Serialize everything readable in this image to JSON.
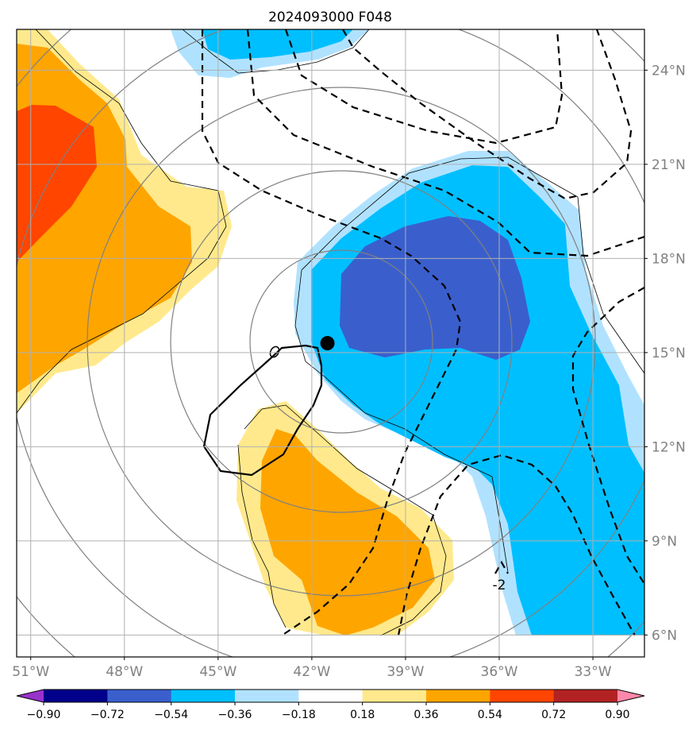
{
  "chart_data": {
    "type": "heatmap",
    "title": "2024093000 F048",
    "xlabel": "",
    "ylabel": "",
    "x_ticks": [
      {
        "value": -51,
        "label": "51°W"
      },
      {
        "value": -48,
        "label": "48°W"
      },
      {
        "value": -45,
        "label": "45°W"
      },
      {
        "value": -42,
        "label": "42°W"
      },
      {
        "value": -39,
        "label": "39°W"
      },
      {
        "value": -36,
        "label": "36°W"
      },
      {
        "value": -33,
        "label": "33°W"
      }
    ],
    "y_ticks": [
      {
        "value": 6,
        "label": "6°N"
      },
      {
        "value": 9,
        "label": "9°N"
      },
      {
        "value": 12,
        "label": "12°N"
      },
      {
        "value": 15,
        "label": "15°N"
      },
      {
        "value": 18,
        "label": "18°N"
      },
      {
        "value": 21,
        "label": "21°N"
      },
      {
        "value": 24,
        "label": "24°N"
      }
    ],
    "xlim": [
      -51.45,
      -31.35
    ],
    "ylim": [
      5.3,
      25.3
    ],
    "grid": true,
    "colorbar": {
      "position": "bottom",
      "extend": "both",
      "levels": [
        -0.9,
        -0.72,
        -0.54,
        -0.36,
        -0.18,
        0.18,
        0.36,
        0.54,
        0.72,
        0.9
      ],
      "tick_labels": [
        "−0.90",
        "−0.72",
        "−0.54",
        "−0.36",
        "−0.18",
        "0.18",
        "0.36",
        "0.54",
        "0.72",
        "0.90"
      ],
      "colors": [
        "#9932cc",
        "#00008b",
        "#3a5fcd",
        "#00bfff",
        "#b0e2ff",
        "#ffffff",
        "#ffe98c",
        "#ffa500",
        "#ff4500",
        "#b22222",
        "#ff88aa"
      ]
    },
    "center_marker": {
      "lon": -41.5,
      "lat": 15.3
    },
    "contour_label": "-2",
    "contour_label_position": {
      "lon": -36.0,
      "lat": 7.6
    }
  }
}
